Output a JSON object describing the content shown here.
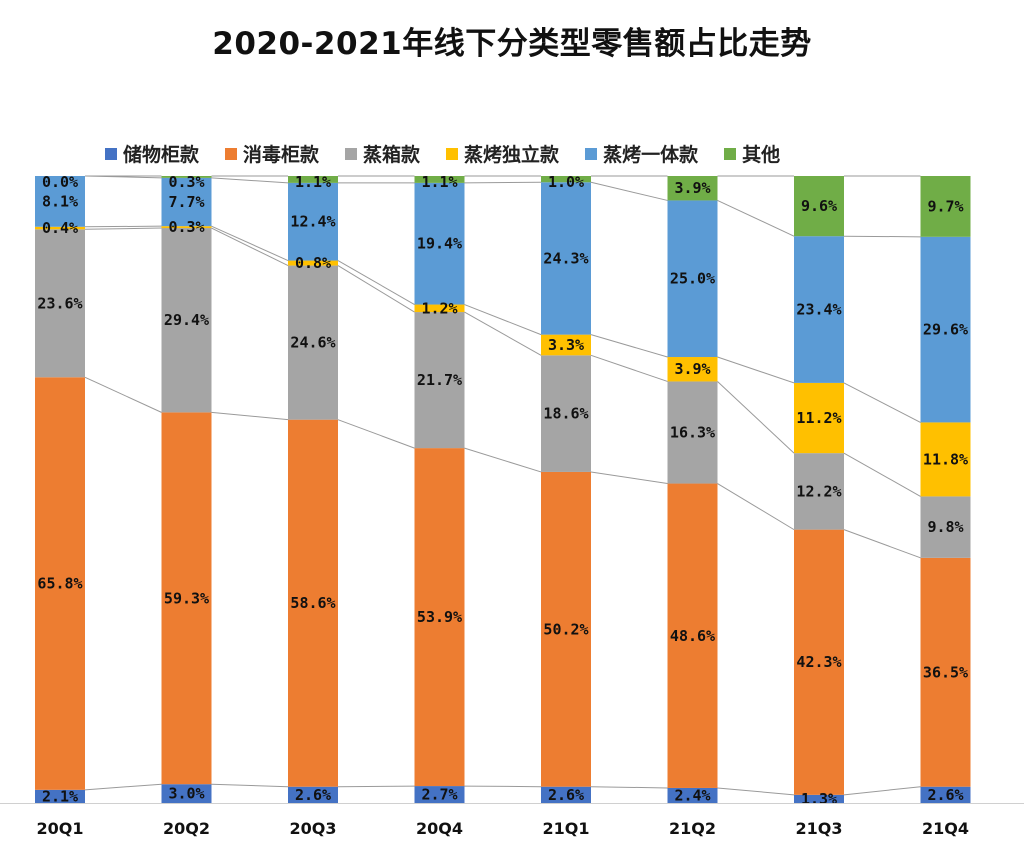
{
  "title": "2020-2021年线下分类型零售额占比走势",
  "chart_data": {
    "type": "bar",
    "stacked": true,
    "categories": [
      "20Q1",
      "20Q2",
      "20Q3",
      "20Q4",
      "21Q1",
      "21Q2",
      "21Q3",
      "21Q4"
    ],
    "ylim": [
      0,
      100
    ],
    "series": [
      {
        "name": "储物柜款",
        "color": "#4472C4",
        "values": [
          2.1,
          3.0,
          2.6,
          2.7,
          2.6,
          2.4,
          1.3,
          2.6
        ],
        "labels": [
          "2.1%",
          "3.0%",
          "2.6%",
          "2.7%",
          "2.6%",
          "2.4%",
          "1.3%",
          "2.6%"
        ]
      },
      {
        "name": "消毒柜款",
        "color": "#ED7D31",
        "values": [
          65.8,
          59.3,
          58.6,
          53.9,
          50.2,
          48.6,
          42.3,
          36.5
        ],
        "labels": [
          "65.8%",
          "59.3%",
          "58.6%",
          "53.9%",
          "50.2%",
          "48.6%",
          "42.3%",
          "36.5%"
        ]
      },
      {
        "name": "蒸箱款",
        "color": "#A5A5A5",
        "values": [
          23.6,
          29.4,
          24.6,
          21.7,
          18.6,
          16.3,
          12.2,
          9.8
        ],
        "labels": [
          "23.6%",
          "29.4%",
          "24.6%",
          "21.7%",
          "18.6%",
          "16.3%",
          "12.2%",
          "9.8%"
        ]
      },
      {
        "name": "蒸烤独立款",
        "color": "#FFC000",
        "values": [
          0.4,
          0.3,
          0.8,
          1.2,
          3.3,
          3.9,
          11.2,
          11.8
        ],
        "labels": [
          "0.4%",
          "0.3%",
          "0.8%",
          "1.2%",
          "3.3%",
          "3.9%",
          "11.2%",
          "11.8%"
        ]
      },
      {
        "name": "蒸烤一体款",
        "color": "#5B9BD5",
        "values": [
          8.1,
          7.7,
          12.4,
          19.4,
          24.3,
          25.0,
          23.4,
          29.6
        ],
        "labels": [
          "8.1%",
          "7.7%",
          "12.4%",
          "19.4%",
          "24.3%",
          "25.0%",
          "23.4%",
          "29.6%"
        ]
      },
      {
        "name": "其他",
        "color": "#70AD47",
        "values": [
          0.0,
          0.3,
          1.1,
          1.1,
          1.0,
          3.9,
          9.6,
          9.7
        ],
        "labels": [
          "0.0%",
          "0.3%",
          "1.1%",
          "1.1%",
          "1.0%",
          "3.9%",
          "9.6%",
          "9.7%"
        ]
      }
    ],
    "legend_position": "top",
    "grid": false,
    "series_lines": true
  }
}
